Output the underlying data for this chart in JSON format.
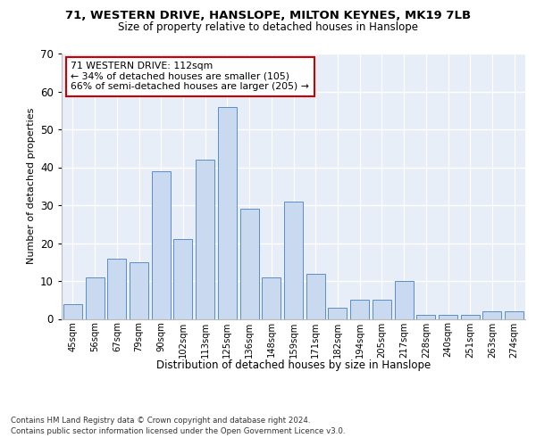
{
  "title1": "71, WESTERN DRIVE, HANSLOPE, MILTON KEYNES, MK19 7LB",
  "title2": "Size of property relative to detached houses in Hanslope",
  "xlabel": "Distribution of detached houses by size in Hanslope",
  "ylabel": "Number of detached properties",
  "categories": [
    "45sqm",
    "56sqm",
    "67sqm",
    "79sqm",
    "90sqm",
    "102sqm",
    "113sqm",
    "125sqm",
    "136sqm",
    "148sqm",
    "159sqm",
    "171sqm",
    "182sqm",
    "194sqm",
    "205sqm",
    "217sqm",
    "228sqm",
    "240sqm",
    "251sqm",
    "263sqm",
    "274sqm"
  ],
  "values": [
    4,
    11,
    16,
    15,
    39,
    21,
    42,
    56,
    29,
    11,
    31,
    12,
    3,
    5,
    5,
    10,
    1,
    1,
    1,
    2,
    2
  ],
  "bar_color": "#c9d9ef",
  "bar_edge_color": "#5b8ec4",
  "annotation_text": "71 WESTERN DRIVE: 112sqm\n← 34% of detached houses are smaller (105)\n66% of semi-detached houses are larger (205) →",
  "annotation_box_color": "#ffffff",
  "annotation_border_color": "#cc0000",
  "highlight_bar_index": 6,
  "highlight_bar_color": "#c9d9ef",
  "footer1": "Contains HM Land Registry data © Crown copyright and database right 2024.",
  "footer2": "Contains public sector information licensed under the Open Government Licence v3.0.",
  "ylim": [
    0,
    70
  ],
  "plot_bg_color": "#e8eef8"
}
